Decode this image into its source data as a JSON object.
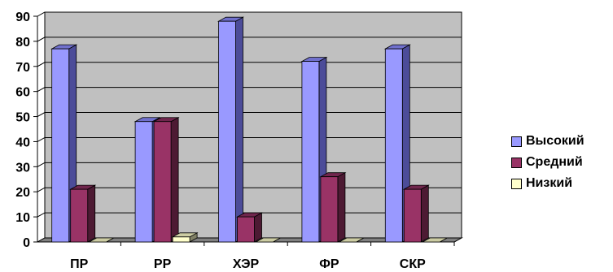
{
  "chart_data": {
    "type": "bar",
    "categories": [
      "ПР",
      "РР",
      "ХЭР",
      "ФР",
      "СКР"
    ],
    "series": [
      {
        "name": "Высокий",
        "values": [
          77,
          48,
          88,
          72,
          77
        ],
        "color": "#9999ff",
        "side_color": "#4c4c99",
        "top_color": "#7070cc"
      },
      {
        "name": "Средний",
        "values": [
          21,
          48,
          10,
          26,
          21
        ],
        "color": "#993366",
        "side_color": "#4d1a33",
        "top_color": "#70264d"
      },
      {
        "name": "Низкий",
        "values": [
          0,
          2,
          0,
          0,
          0
        ],
        "color": "#ffffcc",
        "side_color": "#808066",
        "top_color": "#cccca3"
      }
    ],
    "ylim": [
      0,
      90
    ],
    "yticks": [
      0,
      10,
      20,
      30,
      40,
      50,
      60,
      70,
      80,
      90
    ],
    "grid": true,
    "legend_position": "right",
    "three_d": true,
    "plot_background": "#c0c0c0"
  }
}
